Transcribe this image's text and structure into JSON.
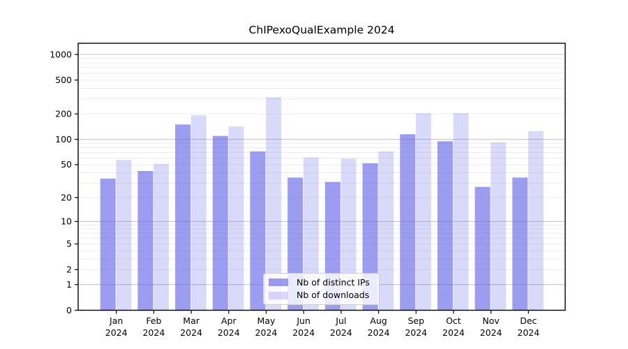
{
  "chart_data": {
    "type": "bar",
    "title": "ChIPexoQualExample 2024",
    "year": "2024",
    "categories": [
      "Jan",
      "Feb",
      "Mar",
      "Apr",
      "May",
      "Jun",
      "Jul",
      "Aug",
      "Sep",
      "Oct",
      "Nov",
      "Dec"
    ],
    "series": [
      {
        "name": "Nb of distinct IPs",
        "fill": "rgba(95,95,232,0.62)",
        "solid_color": "#9f9ff0",
        "values": [
          34,
          42,
          150,
          110,
          72,
          35,
          31,
          52,
          115,
          95,
          27,
          35
        ]
      },
      {
        "name": "Nb of downloads",
        "fill": "rgba(95,95,232,0.24)",
        "solid_color": "#d9d9f8",
        "values": [
          57,
          51,
          192,
          142,
          315,
          61,
          59,
          72,
          204,
          204,
          92,
          125
        ]
      }
    ],
    "yscale": "log10(1+x)",
    "yticks": [
      0,
      1,
      2,
      5,
      10,
      20,
      50,
      100,
      200,
      500,
      1000
    ],
    "ylim_top_approx": 1350,
    "major_gridlines": [
      1,
      10,
      100,
      1000
    ],
    "grid": true,
    "grid_major_color": "#c6c6c6",
    "grid_minor_color": "#ececec",
    "frame_color": "#000000",
    "legend_position": "lower-center",
    "xlabel": "",
    "ylabel": ""
  }
}
